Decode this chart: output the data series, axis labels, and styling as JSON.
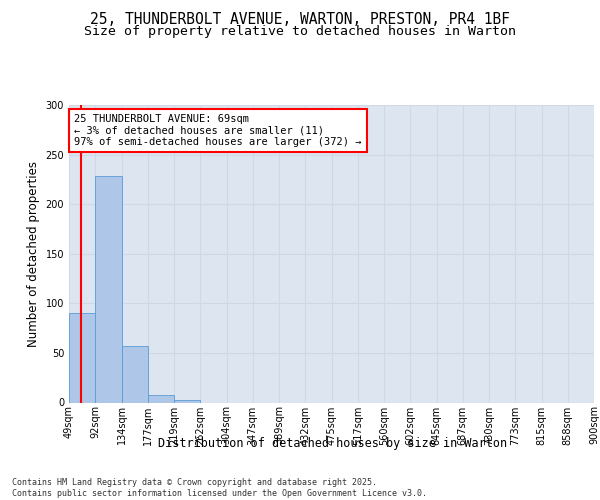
{
  "title_line1": "25, THUNDERBOLT AVENUE, WARTON, PRESTON, PR4 1BF",
  "title_line2": "Size of property relative to detached houses in Warton",
  "xlabel": "Distribution of detached houses by size in Warton",
  "ylabel": "Number of detached properties",
  "bar_values": [
    90,
    228,
    57,
    8,
    3,
    0,
    0,
    0,
    0,
    0,
    0,
    0,
    0,
    0,
    0,
    0,
    0,
    0,
    0,
    0
  ],
  "bar_labels": [
    "49sqm",
    "92sqm",
    "134sqm",
    "177sqm",
    "219sqm",
    "262sqm",
    "304sqm",
    "347sqm",
    "389sqm",
    "432sqm",
    "475sqm",
    "517sqm",
    "560sqm",
    "602sqm",
    "645sqm",
    "687sqm",
    "730sqm",
    "773sqm",
    "815sqm",
    "858sqm",
    "900sqm"
  ],
  "bar_color": "#aec6e8",
  "bar_edgecolor": "#5a9bd5",
  "grid_color": "#d0d8e8",
  "background_color": "#dde5f0",
  "annotation_text": "25 THUNDERBOLT AVENUE: 69sqm\n← 3% of detached houses are smaller (11)\n97% of semi-detached houses are larger (372) →",
  "annotation_box_color": "white",
  "annotation_box_edgecolor": "red",
  "vline_color": "red",
  "ylim": [
    0,
    300
  ],
  "yticks": [
    0,
    50,
    100,
    150,
    200,
    250,
    300
  ],
  "footer_text": "Contains HM Land Registry data © Crown copyright and database right 2025.\nContains public sector information licensed under the Open Government Licence v3.0.",
  "title_fontsize": 10.5,
  "subtitle_fontsize": 9.5,
  "axis_label_fontsize": 8.5,
  "tick_fontsize": 7,
  "annotation_fontsize": 7.5,
  "footer_fontsize": 6
}
